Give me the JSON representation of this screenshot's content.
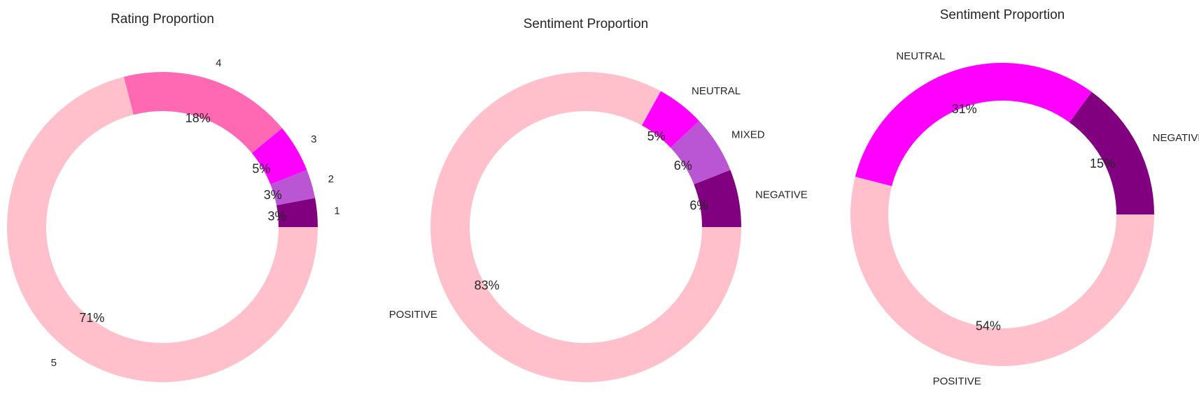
{
  "chart_data": [
    {
      "type": "pie",
      "title": "Rating Proportion",
      "slices": [
        {
          "label": "1",
          "value": 3,
          "pct_label": "3%",
          "color": "#800080"
        },
        {
          "label": "2",
          "value": 3,
          "pct_label": "3%",
          "color": "#BA55D3"
        },
        {
          "label": "3",
          "value": 5,
          "pct_label": "5%",
          "color": "#FF00FF"
        },
        {
          "label": "4",
          "value": 18,
          "pct_label": "18%",
          "color": "#FF69B4"
        },
        {
          "label": "5",
          "value": 71,
          "pct_label": "71%",
          "color": "#FFC0CB"
        }
      ]
    },
    {
      "type": "pie",
      "title": "Sentiment Proportion",
      "slices": [
        {
          "label": "NEGATIVE",
          "value": 6,
          "pct_label": "6%",
          "color": "#800080"
        },
        {
          "label": "MIXED",
          "value": 6,
          "pct_label": "6%",
          "color": "#BA55D3"
        },
        {
          "label": "NEUTRAL",
          "value": 5,
          "pct_label": "5%",
          "color": "#FF00FF"
        },
        {
          "label": "POSITIVE",
          "value": 83,
          "pct_label": "83%",
          "color": "#FFC0CB"
        }
      ]
    },
    {
      "type": "pie",
      "title": "Sentiment Proportion",
      "slices": [
        {
          "label": "NEGATIVE",
          "value": 15,
          "pct_label": "15%",
          "color": "#800080"
        },
        {
          "label": "NEUTRAL",
          "value": 31,
          "pct_label": "31%",
          "color": "#FF00FF"
        },
        {
          "label": "POSITIVE",
          "value": 54,
          "pct_label": "54%",
          "color": "#FFC0CB"
        }
      ]
    }
  ]
}
